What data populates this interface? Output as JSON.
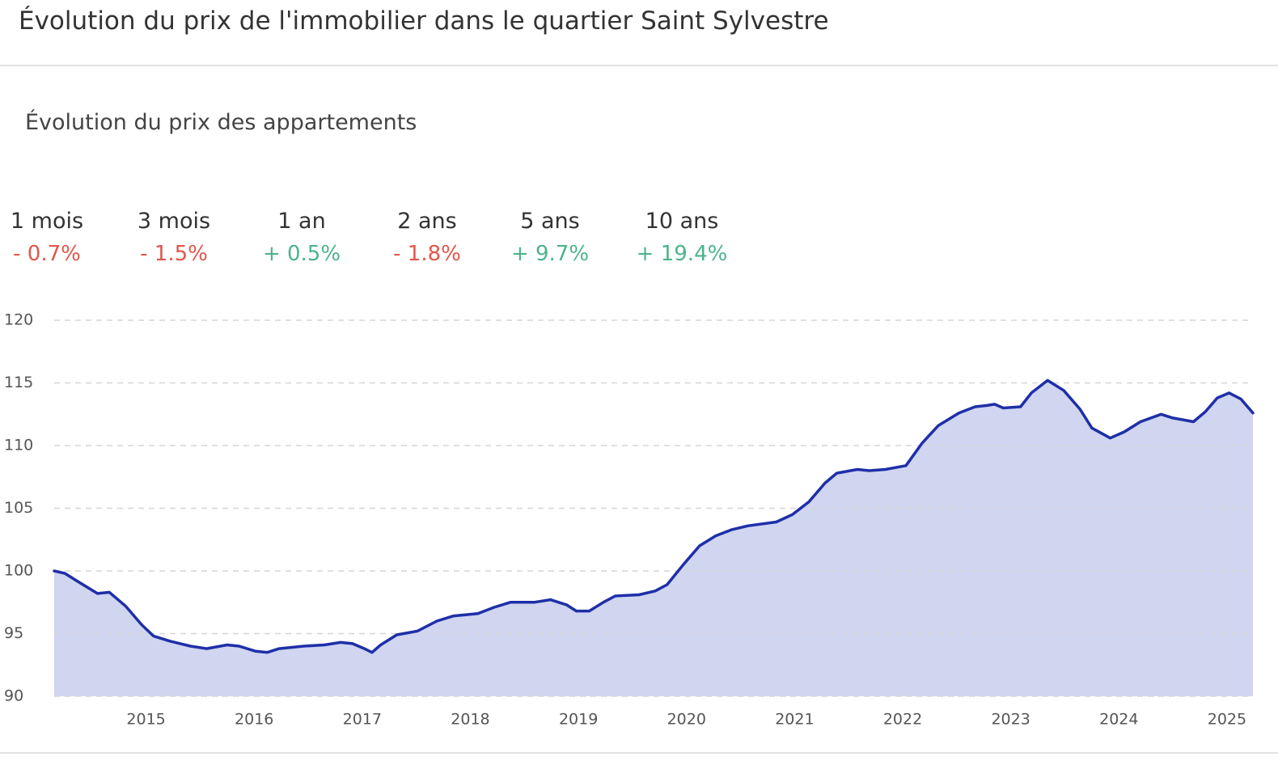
{
  "header": {
    "title": "Évolution du prix de l'immobilier dans le quartier Saint Sylvestre"
  },
  "subtitle": "Évolution du prix des appartements",
  "stats": [
    {
      "period": "1 mois",
      "change": "- 0.7%",
      "color": "#e0574a"
    },
    {
      "period": "3 mois",
      "change": "- 1.5%",
      "color": "#e0574a"
    },
    {
      "period": "1 an",
      "change": "+ 0.5%",
      "color": "#4cb48a"
    },
    {
      "period": "2 ans",
      "change": "- 1.8%",
      "color": "#e0574a"
    },
    {
      "period": "5 ans",
      "change": "+ 9.7%",
      "color": "#4cb48a"
    },
    {
      "period": "10 ans",
      "change": "+ 19.4%",
      "color": "#4cb48a"
    }
  ],
  "chart_data": {
    "type": "area",
    "x": [
      2014.15,
      2014.25,
      2014.36,
      2014.55,
      2014.66,
      2014.81,
      2014.96,
      2015.07,
      2015.22,
      2015.41,
      2015.56,
      2015.75,
      2015.86,
      2016.01,
      2016.12,
      2016.23,
      2016.46,
      2016.65,
      2016.8,
      2016.91,
      2017.02,
      2017.09,
      2017.17,
      2017.32,
      2017.51,
      2017.69,
      2017.84,
      2018.07,
      2018.22,
      2018.37,
      2018.59,
      2018.74,
      2018.89,
      2018.98,
      2019.1,
      2019.23,
      2019.34,
      2019.56,
      2019.71,
      2019.82,
      2019.97,
      2020.12,
      2020.27,
      2020.42,
      2020.57,
      2020.83,
      2020.98,
      2021.13,
      2021.28,
      2021.39,
      2021.58,
      2021.69,
      2021.84,
      2022.03,
      2022.18,
      2022.33,
      2022.52,
      2022.67,
      2022.78,
      2022.85,
      2022.93,
      2023.09,
      2023.19,
      2023.34,
      2023.49,
      2023.64,
      2023.75,
      2023.92,
      2024.05,
      2024.2,
      2024.39,
      2024.5,
      2024.69,
      2024.8,
      2024.91,
      2025.02,
      2025.13,
      2025.24
    ],
    "values": [
      100.0,
      99.8,
      99.2,
      98.2,
      98.3,
      97.2,
      95.7,
      94.8,
      94.4,
      94.0,
      93.8,
      94.1,
      94.0,
      93.6,
      93.5,
      93.8,
      94.0,
      94.1,
      94.3,
      94.2,
      93.8,
      93.5,
      94.1,
      94.9,
      95.2,
      96.0,
      96.4,
      96.6,
      97.1,
      97.5,
      97.5,
      97.7,
      97.3,
      96.8,
      96.8,
      97.5,
      98.0,
      98.1,
      98.4,
      98.9,
      100.5,
      102.0,
      102.8,
      103.3,
      103.6,
      103.9,
      104.5,
      105.5,
      107.0,
      107.8,
      108.1,
      108.0,
      108.1,
      108.4,
      110.2,
      111.6,
      112.6,
      113.1,
      113.2,
      113.3,
      113.0,
      113.1,
      114.2,
      115.2,
      114.4,
      112.9,
      111.4,
      110.6,
      111.1,
      111.9,
      112.5,
      112.2,
      111.9,
      112.7,
      113.8,
      114.2,
      113.7,
      112.6
    ],
    "color": "#1f2fa8",
    "fill": "#d0d5f0",
    "xlim": [
      2014.15,
      2025.24
    ],
    "xticks": [
      2015,
      2016,
      2017,
      2018,
      2019,
      2020,
      2021,
      2022,
      2023,
      2024,
      2025
    ],
    "ylim": [
      90,
      120
    ],
    "yticks": [
      90,
      95,
      100,
      105,
      110,
      115,
      120
    ],
    "grid": true
  }
}
